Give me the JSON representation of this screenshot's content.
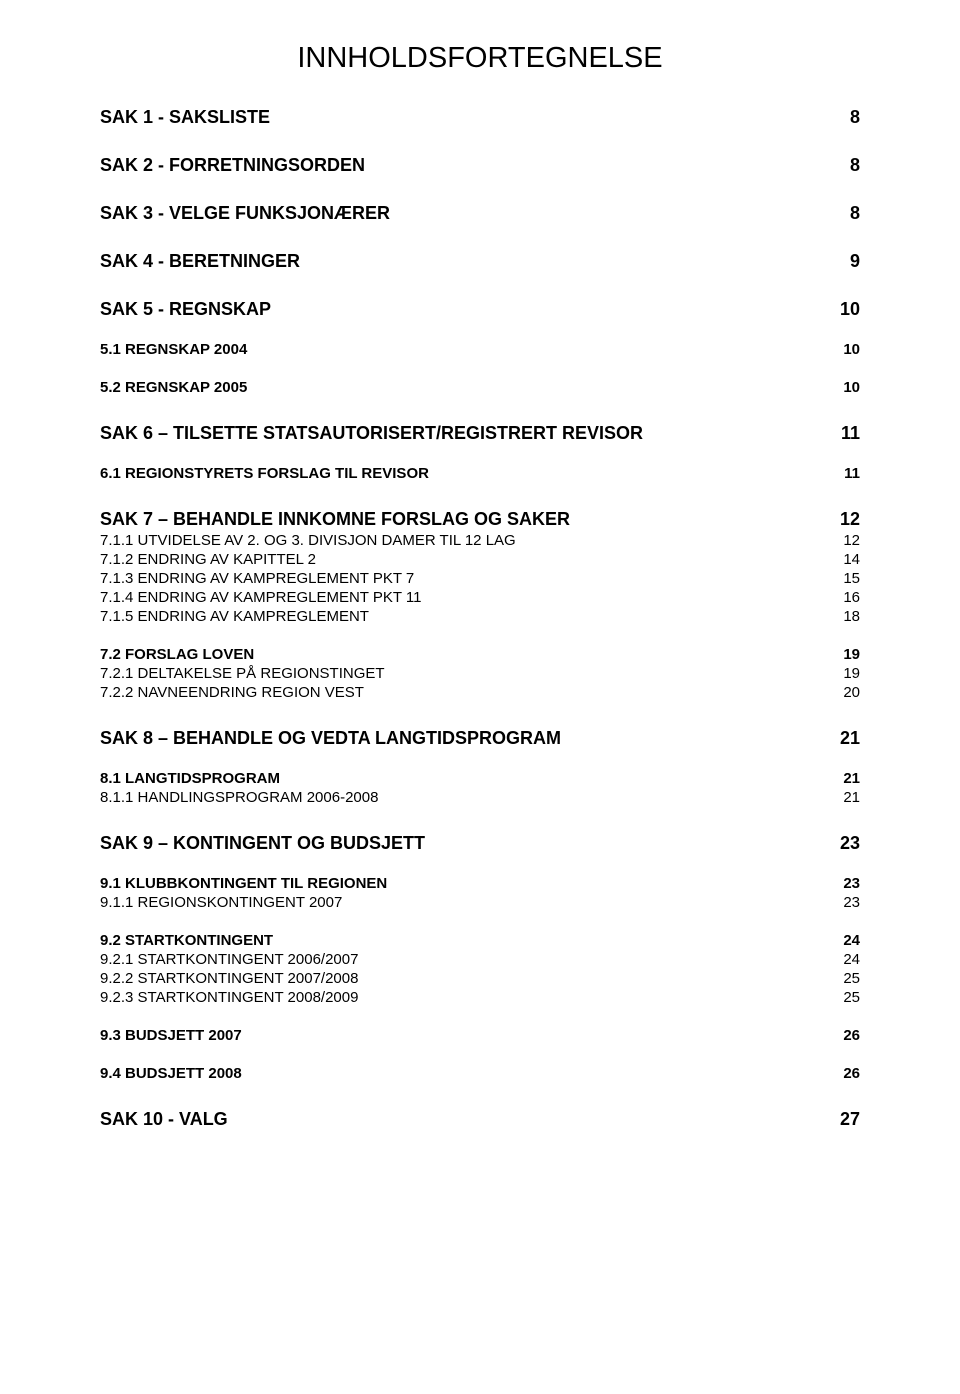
{
  "title": "INNHOLDSFORTEGNELSE",
  "toc": [
    {
      "label": "SAK 1 - SAKSLISTE",
      "page": "8",
      "level": 0
    },
    {
      "label": "SAK 2 - FORRETNINGSORDEN",
      "page": "8",
      "level": 0
    },
    {
      "label": "SAK 3 - VELGE FUNKSJONÆRER",
      "page": "8",
      "level": 0
    },
    {
      "label": "SAK 4 - BERETNINGER",
      "page": "9",
      "level": 0
    },
    {
      "label": "SAK 5 - REGNSKAP",
      "page": "10",
      "level": 0
    },
    {
      "label": "5.1 REGNSKAP 2004",
      "page": "10",
      "level": 1
    },
    {
      "label": "5.2 REGNSKAP 2005",
      "page": "10",
      "level": 1
    },
    {
      "label": "SAK 6 – TILSETTE STATSAUTORISERT/REGISTRERT REVISOR",
      "page": "11",
      "level": 0
    },
    {
      "label": "6.1    REGIONSTYRETS FORSLAG TIL REVISOR",
      "page": "11",
      "level": 1
    },
    {
      "label": "SAK 7 – BEHANDLE INNKOMNE FORSLAG OG SAKER",
      "page": "12",
      "level": 0
    },
    {
      "label": "7.1.1 UTVIDELSE AV 2. OG 3. DIVISJON DAMER TIL 12 LAG",
      "page": "12",
      "level": 2,
      "tight": true
    },
    {
      "label": "7.1.2 ENDRING AV KAPITTEL 2",
      "page": "14",
      "level": 2
    },
    {
      "label": "7.1.3 ENDRING AV KAMPREGLEMENT PKT 7",
      "page": "15",
      "level": 2
    },
    {
      "label": "7.1.4 ENDRING AV KAMPREGLEMENT PKT 11",
      "page": "16",
      "level": 2
    },
    {
      "label": "7.1.5 ENDRING AV KAMPREGLEMENT",
      "page": "18",
      "level": 2
    },
    {
      "label": "7.2 FORSLAG LOVEN",
      "page": "19",
      "level": 1
    },
    {
      "label": "7.2.1 DELTAKELSE PÅ REGIONSTINGET",
      "page": "19",
      "level": 2,
      "tight": true
    },
    {
      "label": "7.2.2 NAVNEENDRING REGION VEST",
      "page": "20",
      "level": 2
    },
    {
      "label": "SAK 8 – BEHANDLE OG VEDTA LANGTIDSPROGRAM",
      "page": "21",
      "level": 0
    },
    {
      "label": "8.1 LANGTIDSPROGRAM",
      "page": "21",
      "level": 1
    },
    {
      "label": "8.1.1 HANDLINGSPROGRAM 2006-2008",
      "page": "21",
      "level": 2,
      "tight": true
    },
    {
      "label": "SAK 9 – KONTINGENT OG BUDSJETT",
      "page": "23",
      "level": 0
    },
    {
      "label": "9.1 KLUBBKONTINGENT TIL REGIONEN",
      "page": "23",
      "level": 1
    },
    {
      "label": "9.1.1 REGIONSKONTINGENT 2007",
      "page": "23",
      "level": 2,
      "tight": true
    },
    {
      "label": "9.2 STARTKONTINGENT",
      "page": "24",
      "level": 1
    },
    {
      "label": "9.2.1 STARTKONTINGENT 2006/2007",
      "page": "24",
      "level": 2,
      "tight": true
    },
    {
      "label": "9.2.2 STARTKONTINGENT 2007/2008",
      "page": "25",
      "level": 2
    },
    {
      "label": "9.2.3 STARTKONTINGENT 2008/2009",
      "page": "25",
      "level": 2
    },
    {
      "label": "9.3 BUDSJETT 2007",
      "page": "26",
      "level": 1
    },
    {
      "label": "9.4 BUDSJETT 2008",
      "page": "26",
      "level": 1
    },
    {
      "label": "SAK 10 - VALG",
      "page": "27",
      "level": 0
    }
  ]
}
